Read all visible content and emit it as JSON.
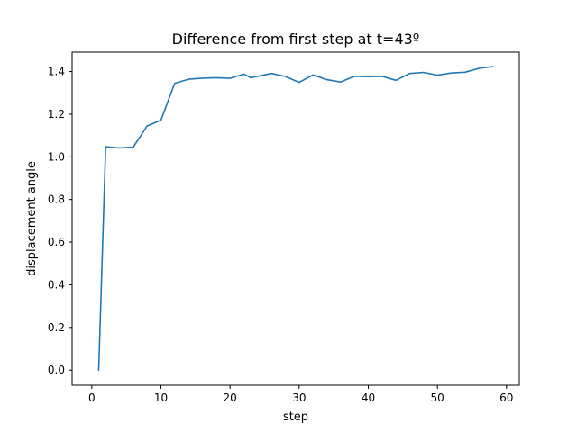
{
  "chart_data": {
    "type": "line",
    "title": "Difference from first step at t=43º",
    "xlabel": "step",
    "ylabel": "displacement angle",
    "xlim": [
      -2.85,
      61.85
    ],
    "ylim": [
      -0.071,
      1.491
    ],
    "xticks": [
      0,
      10,
      20,
      30,
      40,
      50,
      60
    ],
    "yticks": [
      0.0,
      0.2,
      0.4,
      0.6,
      0.8,
      1.0,
      1.2,
      1.4
    ],
    "xtick_labels": [
      "0",
      "10",
      "20",
      "30",
      "40",
      "50",
      "60"
    ],
    "ytick_labels": [
      "0.0",
      "0.2",
      "0.4",
      "0.6",
      "0.8",
      "1.0",
      "1.2",
      "1.4"
    ],
    "grid": false,
    "line_color": "#1f77b4",
    "series": [
      {
        "x": [
          1,
          2,
          4,
          6,
          8,
          10,
          12,
          14,
          16,
          18,
          20,
          22,
          23,
          26,
          28,
          30,
          32,
          34,
          36,
          38,
          40,
          42,
          44,
          46,
          48,
          50,
          52,
          54,
          56,
          58
        ],
        "values": [
          0.0,
          1.047,
          1.042,
          1.045,
          1.145,
          1.172,
          1.345,
          1.364,
          1.369,
          1.371,
          1.368,
          1.388,
          1.371,
          1.391,
          1.377,
          1.349,
          1.384,
          1.362,
          1.351,
          1.378,
          1.376,
          1.378,
          1.359,
          1.391,
          1.396,
          1.383,
          1.393,
          1.397,
          1.415,
          1.423
        ]
      }
    ]
  }
}
